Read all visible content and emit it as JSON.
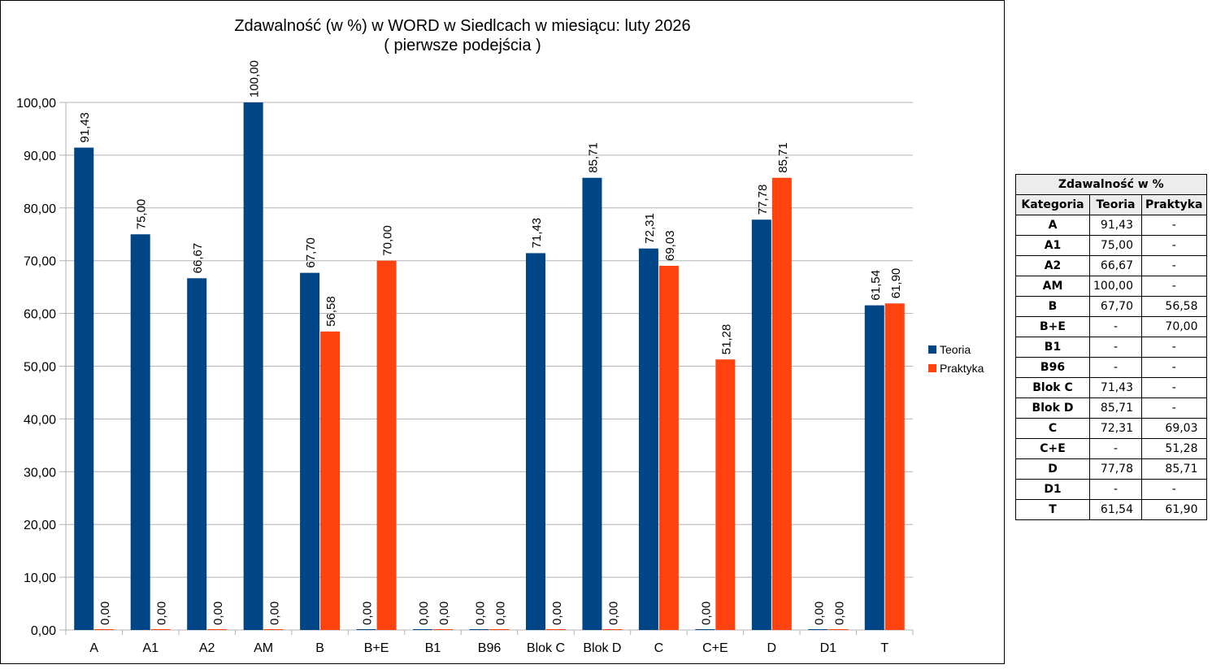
{
  "chart_data": {
    "type": "bar",
    "title": "Zdawalność (w %) w WORD w Siedlcach w miesiącu: luty 2026",
    "subtitle": "( pierwsze podejścia )",
    "categories": [
      "A",
      "A1",
      "A2",
      "AM",
      "B",
      "B+E",
      "B1",
      "B96",
      "Blok C",
      "Blok D",
      "C",
      "C+E",
      "D",
      "D1",
      "T"
    ],
    "series": [
      {
        "name": "Teoria",
        "color": "#004586",
        "values": [
          91.43,
          75.0,
          66.67,
          100.0,
          67.7,
          0,
          0,
          0,
          71.43,
          85.71,
          72.31,
          0,
          77.78,
          0,
          61.54
        ]
      },
      {
        "name": "Praktyka",
        "color": "#ff420e",
        "values": [
          0,
          0,
          0,
          0,
          56.58,
          70.0,
          0,
          0,
          0,
          0,
          69.03,
          51.28,
          85.71,
          0,
          61.9
        ]
      }
    ],
    "ylim": [
      0,
      100
    ],
    "yticks": [
      0,
      10,
      20,
      30,
      40,
      50,
      60,
      70,
      80,
      90,
      100
    ],
    "ytick_labels": [
      "0,00",
      "10,00",
      "20,00",
      "30,00",
      "40,00",
      "50,00",
      "60,00",
      "70,00",
      "80,00",
      "90,00",
      "100,00"
    ],
    "grid": true,
    "legend_position": "right",
    "xlabel": "",
    "ylabel": ""
  },
  "table": {
    "title": "Zdawalność w %",
    "headers": [
      "Kategoria",
      "Teoria",
      "Praktyka"
    ],
    "rows": [
      [
        "A",
        "91,43",
        "-"
      ],
      [
        "A1",
        "75,00",
        "-"
      ],
      [
        "A2",
        "66,67",
        "-"
      ],
      [
        "AM",
        "100,00",
        "-"
      ],
      [
        "B",
        "67,70",
        "56,58"
      ],
      [
        "B+E",
        "-",
        "70,00"
      ],
      [
        "B1",
        "-",
        "-"
      ],
      [
        "B96",
        "-",
        "-"
      ],
      [
        "Blok C",
        "71,43",
        "-"
      ],
      [
        "Blok D",
        "85,71",
        "-"
      ],
      [
        "C",
        "72,31",
        "69,03"
      ],
      [
        "C+E",
        "-",
        "51,28"
      ],
      [
        "D",
        "77,78",
        "85,71"
      ],
      [
        "D1",
        "-",
        "-"
      ],
      [
        "T",
        "61,54",
        "61,90"
      ]
    ]
  }
}
